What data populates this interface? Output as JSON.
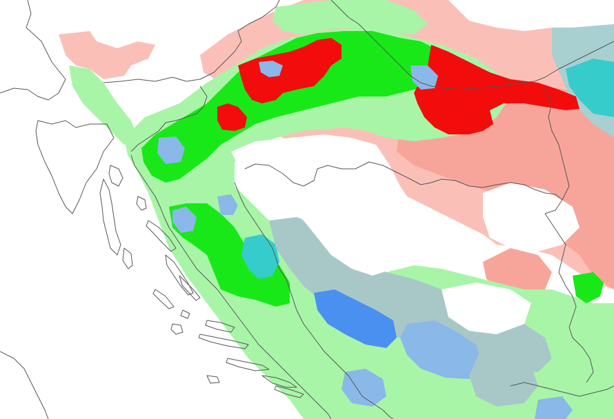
{
  "map": {
    "background": "#ffffff",
    "border_color": "#555555",
    "categories": [
      {
        "name": "light-green",
        "color": "#a8f5a8"
      },
      {
        "name": "green",
        "color": "#18e818"
      },
      {
        "name": "red",
        "color": "#f20c0c"
      },
      {
        "name": "salmon",
        "color": "#f7a59a"
      },
      {
        "name": "light-pink",
        "color": "#fac0b8"
      },
      {
        "name": "cyan",
        "color": "#36cccc"
      },
      {
        "name": "teal-gray",
        "color": "#a8d0d0"
      },
      {
        "name": "light-blue",
        "color": "#8ab8e8"
      },
      {
        "name": "blue",
        "color": "#4a90f0"
      },
      {
        "name": "gray-blue",
        "color": "#a8c8c8"
      }
    ]
  }
}
